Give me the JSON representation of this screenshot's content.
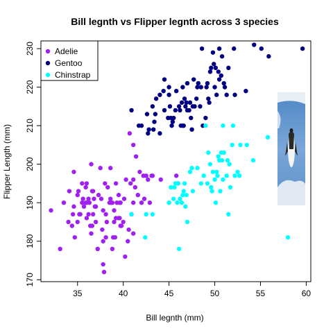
{
  "chart_data": {
    "type": "scatter",
    "title": "Bill legnth vs Flipper legnth across 3 species",
    "xlabel": "Bill legnth (mm)",
    "ylabel": "Flipper Length (mm)",
    "xlim": [
      31,
      60.5
    ],
    "ylim": [
      169.5,
      232
    ],
    "x_ticks": [
      35,
      40,
      45,
      50,
      55,
      60
    ],
    "y_ticks": [
      170,
      180,
      190,
      200,
      210,
      220,
      230
    ],
    "grid": false,
    "legend_position": "top-left",
    "series": [
      {
        "name": "Adelie",
        "color": "#a020f0",
        "points": [
          [
            32.1,
            188
          ],
          [
            33.1,
            178
          ],
          [
            33.5,
            190
          ],
          [
            34.0,
            185
          ],
          [
            34.1,
            193
          ],
          [
            34.4,
            184
          ],
          [
            34.5,
            187
          ],
          [
            34.6,
            189
          ],
          [
            34.6,
            198
          ],
          [
            34.7,
            181
          ],
          [
            35.0,
            185
          ],
          [
            35.0,
            192
          ],
          [
            35.1,
            193
          ],
          [
            35.2,
            187
          ],
          [
            35.3,
            187
          ],
          [
            35.5,
            190
          ],
          [
            35.6,
            191
          ],
          [
            35.7,
            189
          ],
          [
            35.9,
            190
          ],
          [
            35.9,
            194
          ],
          [
            36.0,
            186
          ],
          [
            36.0,
            195
          ],
          [
            36.2,
            187
          ],
          [
            36.2,
            191
          ],
          [
            36.3,
            190
          ],
          [
            36.4,
            184
          ],
          [
            36.5,
            182
          ],
          [
            36.6,
            184
          ],
          [
            36.6,
            193
          ],
          [
            36.7,
            187
          ],
          [
            36.7,
            193
          ],
          [
            36.8,
            191
          ],
          [
            36.9,
            189
          ],
          [
            37.0,
            185
          ],
          [
            37.2,
            178
          ],
          [
            37.3,
            192
          ],
          [
            37.5,
            199
          ],
          [
            37.6,
            191
          ],
          [
            37.7,
            183
          ],
          [
            37.8,
            174
          ],
          [
            37.8,
            180
          ],
          [
            37.8,
            188
          ],
          [
            37.9,
            172
          ],
          [
            38.1,
            181
          ],
          [
            38.1,
            187
          ],
          [
            38.2,
            185
          ],
          [
            38.3,
            194
          ],
          [
            38.5,
            190
          ],
          [
            38.6,
            191
          ],
          [
            38.6,
            199
          ],
          [
            38.7,
            190
          ],
          [
            38.8,
            178
          ],
          [
            38.8,
            190
          ],
          [
            38.9,
            181
          ],
          [
            39.0,
            185
          ],
          [
            39.1,
            181
          ],
          [
            39.2,
            186
          ],
          [
            39.2,
            195
          ],
          [
            39.3,
            190
          ],
          [
            39.5,
            186
          ],
          [
            39.6,
            186
          ],
          [
            39.6,
            190
          ],
          [
            39.7,
            184
          ],
          [
            39.7,
            190
          ],
          [
            39.8,
            184
          ],
          [
            40.1,
            191
          ],
          [
            40.2,
            176
          ],
          [
            40.3,
            196
          ],
          [
            40.5,
            180
          ],
          [
            40.6,
            183
          ],
          [
            40.8,
            195
          ],
          [
            40.9,
            187
          ],
          [
            41.1,
            182
          ],
          [
            41.1,
            190
          ],
          [
            41.1,
            196
          ],
          [
            41.3,
            194
          ],
          [
            41.4,
            202
          ],
          [
            41.6,
            192
          ],
          [
            41.8,
            198
          ],
          [
            42.0,
            190
          ],
          [
            42.2,
            197
          ],
          [
            42.3,
            191
          ],
          [
            42.5,
            197
          ],
          [
            42.7,
            196
          ],
          [
            42.9,
            190
          ],
          [
            43.1,
            197
          ],
          [
            43.2,
            197
          ],
          [
            44.1,
            196
          ],
          [
            45.8,
            197
          ],
          [
            46.0,
            195
          ],
          [
            40.7,
            208
          ],
          [
            41.1,
            205
          ],
          [
            35.5,
            195
          ],
          [
            36.0,
            190
          ],
          [
            38.0,
            195
          ],
          [
            39.0,
            188
          ],
          [
            40.0,
            185
          ],
          [
            37.0,
            189
          ],
          [
            36.5,
            200
          ],
          [
            39.5,
            192
          ]
        ]
      },
      {
        "name": "Gentoo",
        "color": "#000080",
        "points": [
          [
            40.9,
            214
          ],
          [
            41.7,
            210
          ],
          [
            42.0,
            210
          ],
          [
            42.6,
            213
          ],
          [
            42.7,
            208
          ],
          [
            42.8,
            209
          ],
          [
            43.2,
            215
          ],
          [
            43.3,
            209
          ],
          [
            43.4,
            211
          ],
          [
            43.5,
            213
          ],
          [
            43.6,
            217
          ],
          [
            44.0,
            208
          ],
          [
            44.4,
            219
          ],
          [
            44.5,
            214
          ],
          [
            44.9,
            212
          ],
          [
            45.0,
            220
          ],
          [
            45.1,
            215
          ],
          [
            45.2,
            212
          ],
          [
            45.3,
            210
          ],
          [
            45.4,
            211
          ],
          [
            45.5,
            212
          ],
          [
            45.7,
            214
          ],
          [
            45.8,
            219
          ],
          [
            46.1,
            215
          ],
          [
            46.2,
            214
          ],
          [
            46.3,
            210
          ],
          [
            46.4,
            216
          ],
          [
            46.5,
            210
          ],
          [
            46.6,
            210
          ],
          [
            46.7,
            217
          ],
          [
            46.8,
            215
          ],
          [
            46.9,
            216
          ],
          [
            47.0,
            214
          ],
          [
            47.2,
            214
          ],
          [
            47.3,
            216
          ],
          [
            47.4,
            212
          ],
          [
            47.5,
            209
          ],
          [
            47.6,
            215
          ],
          [
            47.7,
            222
          ],
          [
            47.8,
            215
          ],
          [
            48.1,
            220
          ],
          [
            48.2,
            221
          ],
          [
            48.4,
            215
          ],
          [
            48.5,
            220
          ],
          [
            48.6,
            230
          ],
          [
            48.7,
            210
          ],
          [
            49.0,
            212
          ],
          [
            49.1,
            220
          ],
          [
            49.2,
            221
          ],
          [
            49.3,
            217
          ],
          [
            49.4,
            216
          ],
          [
            49.5,
            224
          ],
          [
            49.6,
            225
          ],
          [
            49.8,
            229
          ],
          [
            50.0,
            220
          ],
          [
            50.1,
            225
          ],
          [
            50.2,
            218
          ],
          [
            50.4,
            224
          ],
          [
            50.5,
            222
          ],
          [
            50.7,
            223
          ],
          [
            50.8,
            228
          ],
          [
            51.1,
            220
          ],
          [
            51.3,
            218
          ],
          [
            51.5,
            225
          ],
          [
            52.1,
            230
          ],
          [
            52.2,
            218
          ],
          [
            53.4,
            219
          ],
          [
            54.3,
            231
          ],
          [
            55.1,
            230
          ],
          [
            55.9,
            228
          ],
          [
            59.6,
            230
          ],
          [
            44.0,
            218
          ],
          [
            45.0,
            218
          ],
          [
            46.5,
            220
          ],
          [
            47.0,
            221
          ],
          [
            48.0,
            217
          ],
          [
            49.9,
            226
          ],
          [
            50.5,
            230
          ],
          [
            51.0,
            221
          ],
          [
            44.5,
            222
          ]
        ]
      },
      {
        "name": "Chinstrap",
        "color": "#00ffff",
        "points": [
          [
            40.9,
            187
          ],
          [
            42.4,
            181
          ],
          [
            42.5,
            187
          ],
          [
            43.2,
            187
          ],
          [
            45.2,
            194
          ],
          [
            45.5,
            191
          ],
          [
            45.6,
            194
          ],
          [
            45.7,
            195
          ],
          [
            45.9,
            190
          ],
          [
            46.0,
            195
          ],
          [
            46.1,
            178
          ],
          [
            46.4,
            190
          ],
          [
            46.5,
            192
          ],
          [
            46.6,
            193
          ],
          [
            46.7,
            195
          ],
          [
            46.8,
            189
          ],
          [
            46.9,
            192
          ],
          [
            47.0,
            185
          ],
          [
            47.5,
            199
          ],
          [
            47.6,
            193
          ],
          [
            48.1,
            199
          ],
          [
            48.5,
            195
          ],
          [
            49.0,
            210
          ],
          [
            49.2,
            195
          ],
          [
            49.5,
            200
          ],
          [
            49.6,
            194
          ],
          [
            49.7,
            193
          ],
          [
            49.8,
            198
          ],
          [
            50.0,
            196
          ],
          [
            50.1,
            190
          ],
          [
            50.2,
            198
          ],
          [
            50.3,
            197
          ],
          [
            50.4,
            202
          ],
          [
            50.5,
            201
          ],
          [
            50.6,
            193
          ],
          [
            50.7,
            203
          ],
          [
            50.8,
            201
          ],
          [
            50.9,
            196
          ],
          [
            51.0,
            203
          ],
          [
            51.3,
            197
          ],
          [
            51.4,
            201
          ],
          [
            51.5,
            187
          ],
          [
            51.7,
            194
          ],
          [
            51.9,
            205
          ],
          [
            52.0,
            210
          ],
          [
            52.2,
            197
          ],
          [
            52.7,
            197
          ],
          [
            52.8,
            205
          ],
          [
            53.5,
            205
          ],
          [
            54.2,
            201
          ],
          [
            55.8,
            207
          ],
          [
            58.0,
            181
          ],
          [
            45.0,
            190
          ],
          [
            46.2,
            191
          ],
          [
            47.3,
            198
          ],
          [
            49.3,
            203
          ],
          [
            50.9,
            210
          ],
          [
            52.5,
            198
          ],
          [
            51.6,
            200
          ],
          [
            48.8,
            197
          ]
        ]
      }
    ]
  }
}
